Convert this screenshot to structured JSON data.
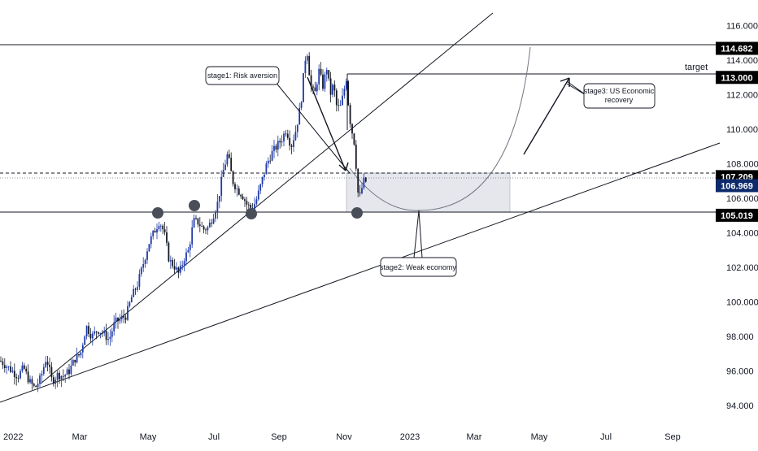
{
  "chart_data": {
    "type": "candlestick",
    "x_ticks": [
      "2022",
      "Mar",
      "May",
      "Jul",
      "Sep",
      "Nov",
      "2023",
      "Mar",
      "May",
      "Jul",
      "Sep"
    ],
    "y_ticks": [
      "116.000",
      "114.000",
      "112.000",
      "110.000",
      "108.000",
      "106.000",
      "104.000",
      "102.000",
      "100.000",
      "98.000",
      "96.000",
      "94.000"
    ],
    "ylim": [
      93.3,
      117.2
    ],
    "price_tags": [
      {
        "id": "top",
        "label": "114.682",
        "value": 114.682,
        "color": "#000000"
      },
      {
        "id": "target",
        "label": "113.000",
        "value": 113.0,
        "color": "#000000"
      },
      {
        "id": "dashed",
        "label": "107.209",
        "value": 107.209,
        "color": "#000000"
      },
      {
        "id": "last",
        "label": "106.969",
        "value": 106.969,
        "color": "#0d2a6b"
      },
      {
        "id": "support",
        "label": "105.019",
        "value": 105.019,
        "color": "#000000"
      }
    ],
    "annotations": {
      "target": "target",
      "stage1": "stage1: Risk aversion",
      "stage2": "stage2: Weak economy",
      "stage3_line1": "stage3: US Economic",
      "stage3_line2": "recovery"
    },
    "price_path": [
      [
        0,
        96.6
      ],
      [
        8,
        96.3
      ],
      [
        15,
        96.0
      ],
      [
        22,
        95.7
      ],
      [
        29,
        96.2
      ],
      [
        36,
        95.4
      ],
      [
        43,
        95.0
      ],
      [
        50,
        95.6
      ],
      [
        57,
        96.8
      ],
      [
        64,
        95.4
      ],
      [
        71,
        95.8
      ],
      [
        78,
        95.7
      ],
      [
        85,
        96.0
      ],
      [
        92,
        96.7
      ],
      [
        99,
        97.0
      ],
      [
        106,
        98.6
      ],
      [
        113,
        98.0
      ],
      [
        120,
        98.4
      ],
      [
        127,
        98.2
      ],
      [
        134,
        97.8
      ],
      [
        141,
        98.8
      ],
      [
        148,
        99.0
      ],
      [
        155,
        99.2
      ],
      [
        162,
        100.3
      ],
      [
        169,
        101.0
      ],
      [
        176,
        102.2
      ],
      [
        183,
        103.4
      ],
      [
        190,
        104.1
      ],
      [
        196,
        104.7
      ],
      [
        202,
        104.0
      ],
      [
        208,
        102.4
      ],
      [
        214,
        102.1
      ],
      [
        220,
        101.6
      ],
      [
        226,
        102.5
      ],
      [
        232,
        103.0
      ],
      [
        238,
        104.7
      ],
      [
        244,
        104.6
      ],
      [
        250,
        104.2
      ],
      [
        256,
        104.3
      ],
      [
        262,
        105.0
      ],
      [
        268,
        105.8
      ],
      [
        274,
        107.5
      ],
      [
        280,
        108.6
      ],
      [
        286,
        107.0
      ],
      [
        292,
        106.5
      ],
      [
        298,
        106.2
      ],
      [
        304,
        105.6
      ],
      [
        310,
        105.4
      ],
      [
        316,
        106.0
      ],
      [
        322,
        107.0
      ],
      [
        328,
        108.0
      ],
      [
        334,
        108.6
      ],
      [
        340,
        109.0
      ],
      [
        346,
        109.4
      ],
      [
        352,
        110.0
      ],
      [
        358,
        109.0
      ],
      [
        364,
        110.0
      ],
      [
        370,
        111.5
      ],
      [
        374,
        113.5
      ],
      [
        377,
        114.8
      ],
      [
        382,
        112.5
      ],
      [
        387,
        112.0
      ],
      [
        392,
        113.4
      ],
      [
        397,
        112.5
      ],
      [
        402,
        113.6
      ],
      [
        406,
        112.0
      ],
      [
        410,
        112.6
      ],
      [
        414,
        111.3
      ],
      [
        418,
        111.2
      ],
      [
        422,
        112.0
      ],
      [
        426,
        113.0
      ],
      [
        429,
        111.0
      ],
      [
        432,
        110.0
      ],
      [
        435,
        109.5
      ],
      [
        438,
        107.8
      ],
      [
        441,
        105.8
      ],
      [
        444,
        106.4
      ],
      [
        447,
        107.0
      ],
      [
        450,
        106.97
      ]
    ]
  }
}
